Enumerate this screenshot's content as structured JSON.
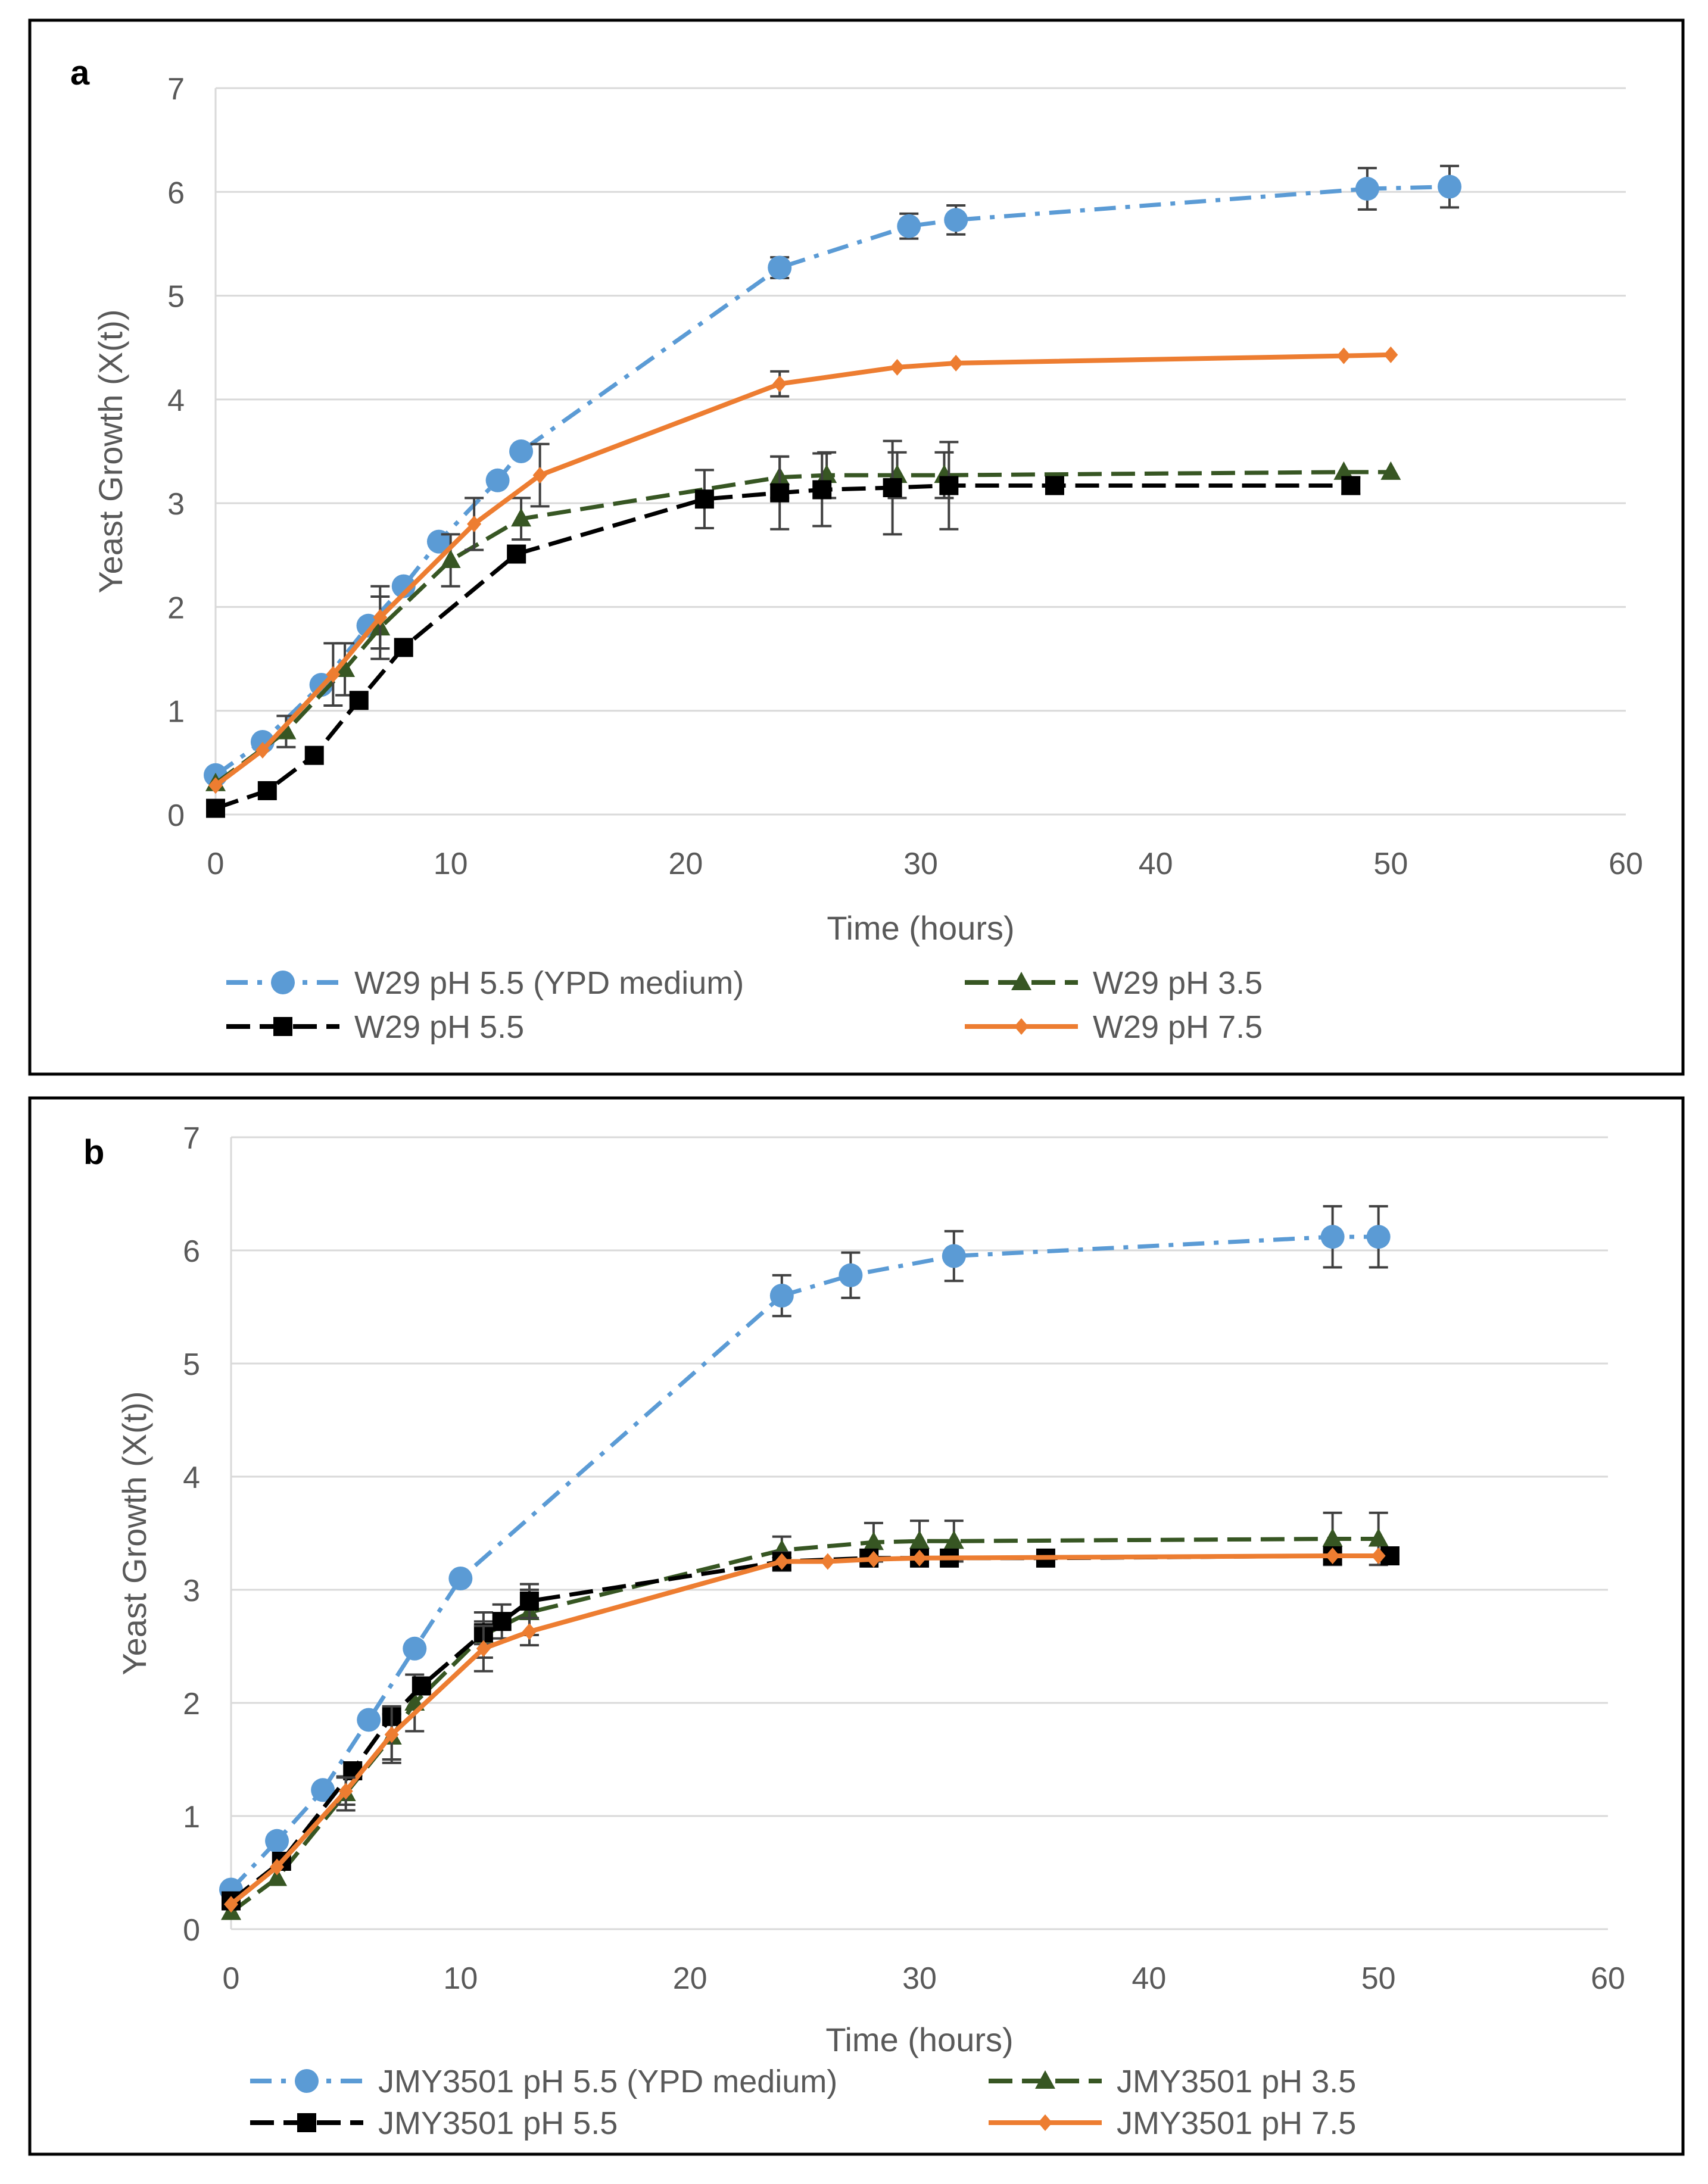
{
  "colors": {
    "ypd": "#5b9bd5",
    "ph35": "#375623",
    "ph55": "#000000",
    "ph75": "#ed7d31",
    "grid": "#d9d9d9",
    "axis": "#595959",
    "frame": "#000000"
  },
  "chart_data": [
    {
      "panel": "a",
      "type": "line",
      "title": "",
      "xlabel": "Time (hours)",
      "ylabel": "Yeast Growth (X(t))",
      "xlim": [
        0,
        60
      ],
      "ylim": [
        0,
        7
      ],
      "xticks": [
        "0",
        "10",
        "20",
        "30",
        "40",
        "50",
        "60"
      ],
      "yticks": [
        "0",
        "1",
        "2",
        "3",
        "4",
        "5",
        "6",
        "7"
      ],
      "grid": "horizontal",
      "legend_position": "bottom",
      "series": [
        {
          "name": "W29 pH 5.5 (YPD medium)",
          "color_key": "ypd",
          "marker": "circle",
          "dash": "dash-dot",
          "x": [
            0,
            2,
            4.5,
            6.5,
            8,
            9.5,
            12,
            13,
            24,
            29.5,
            31.5,
            49,
            52.5
          ],
          "y": [
            0.38,
            0.7,
            1.25,
            1.82,
            2.2,
            2.63,
            3.22,
            3.5,
            5.27,
            5.67,
            5.73,
            6.03,
            6.05
          ],
          "err": [
            0,
            0,
            0,
            0,
            0,
            0,
            0,
            0,
            0.1,
            0.12,
            0.14,
            0.2,
            0.2
          ]
        },
        {
          "name": "W29 pH 3.5",
          "color_key": "ph35",
          "marker": "triangle",
          "dash": "dash",
          "x": [
            0,
            3,
            5.5,
            7,
            10,
            13,
            24,
            26,
            29,
            31,
            48,
            50
          ],
          "y": [
            0.3,
            0.8,
            1.4,
            1.8,
            2.45,
            2.85,
            3.25,
            3.27,
            3.27,
            3.27,
            3.3,
            3.3
          ],
          "err": [
            0,
            0.15,
            0.25,
            0.3,
            0.25,
            0.2,
            0.2,
            0.22,
            0.22,
            0.22,
            0,
            0
          ]
        },
        {
          "name": "W29 pH 5.5",
          "color_key": "ph55",
          "marker": "square",
          "dash": "dash",
          "x": [
            0,
            2.2,
            4.2,
            6.1,
            8,
            12.8,
            20.8,
            24,
            25.8,
            28.8,
            31.2,
            35.7,
            48.3
          ],
          "y": [
            0.06,
            0.23,
            0.57,
            1.1,
            1.61,
            2.51,
            3.04,
            3.1,
            3.13,
            3.15,
            3.17,
            3.17,
            3.17
          ],
          "err": [
            0,
            0,
            0,
            0,
            0,
            0,
            0.28,
            0.35,
            0.35,
            0.45,
            0.42,
            0,
            0.08
          ]
        },
        {
          "name": "W29 pH 7.5",
          "color_key": "ph75",
          "marker": "diamond",
          "dash": "solid",
          "x": [
            0,
            2,
            5,
            7,
            11,
            13.8,
            24,
            29,
            31.5,
            48,
            50
          ],
          "y": [
            0.28,
            0.62,
            1.35,
            1.9,
            2.8,
            3.27,
            4.15,
            4.31,
            4.35,
            4.42,
            4.43
          ],
          "err": [
            0,
            0,
            0.3,
            0.3,
            0.25,
            0.3,
            0.12,
            0,
            0,
            0,
            0
          ]
        }
      ]
    },
    {
      "panel": "b",
      "type": "line",
      "title": "",
      "xlabel": "Time (hours)",
      "ylabel": "Yeast Growth (X(t))",
      "xlim": [
        0,
        60
      ],
      "ylim": [
        0,
        7
      ],
      "xticks": [
        "0",
        "10",
        "20",
        "30",
        "40",
        "50",
        "60"
      ],
      "yticks": [
        "0",
        "1",
        "2",
        "3",
        "4",
        "5",
        "6",
        "7"
      ],
      "grid": "horizontal",
      "legend_position": "bottom",
      "series": [
        {
          "name": "JMY3501 pH 5.5 (YPD medium)",
          "color_key": "ypd",
          "marker": "circle",
          "dash": "dash-dot",
          "x": [
            0,
            2,
            4,
            6,
            8,
            10,
            24,
            27,
            31.5,
            48,
            50
          ],
          "y": [
            0.35,
            0.78,
            1.23,
            1.85,
            2.48,
            3.1,
            5.6,
            5.78,
            5.95,
            6.12,
            6.12
          ],
          "err": [
            0,
            0,
            0,
            0,
            0,
            0,
            0.18,
            0.2,
            0.22,
            0.27,
            0.27
          ]
        },
        {
          "name": "JMY3501 pH 3.5",
          "color_key": "ph35",
          "marker": "triangle",
          "dash": "dash",
          "x": [
            0,
            2,
            5,
            7,
            8,
            11,
            13,
            24,
            28,
            30,
            31.5,
            48,
            50
          ],
          "y": [
            0.15,
            0.45,
            1.2,
            1.7,
            2.0,
            2.6,
            2.8,
            3.35,
            3.42,
            3.43,
            3.43,
            3.45,
            3.45
          ],
          "err": [
            0,
            0,
            0.15,
            0.2,
            0.25,
            0.2,
            0.2,
            0.12,
            0.17,
            0.18,
            0.18,
            0.23,
            0.23
          ]
        },
        {
          "name": "JMY3501 pH 5.5",
          "color_key": "ph55",
          "marker": "square",
          "dash": "dash",
          "x": [
            0,
            2.2,
            5.3,
            7,
            8.3,
            11,
            11.8,
            13,
            24,
            27.8,
            30,
            31.3,
            35.5,
            48,
            50.5
          ],
          "y": [
            0.25,
            0.6,
            1.4,
            1.88,
            2.15,
            2.62,
            2.72,
            2.9,
            3.25,
            3.28,
            3.28,
            3.28,
            3.28,
            3.3,
            3.3
          ],
          "err": [
            0,
            0,
            0,
            0,
            0,
            0.1,
            0.15,
            0.15,
            0.08,
            0,
            0,
            0,
            0,
            0,
            0
          ]
        },
        {
          "name": "JMY3501 pH 7.5",
          "color_key": "ph75",
          "marker": "diamond",
          "dash": "solid",
          "x": [
            0,
            2,
            5,
            7,
            11,
            13,
            24,
            26,
            28,
            30,
            48,
            50
          ],
          "y": [
            0.22,
            0.55,
            1.22,
            1.72,
            2.48,
            2.63,
            3.25,
            3.25,
            3.27,
            3.28,
            3.3,
            3.3
          ],
          "err": [
            0,
            0,
            0.12,
            0.25,
            0.2,
            0.12,
            0,
            0,
            0,
            0,
            0,
            0
          ]
        }
      ]
    }
  ]
}
